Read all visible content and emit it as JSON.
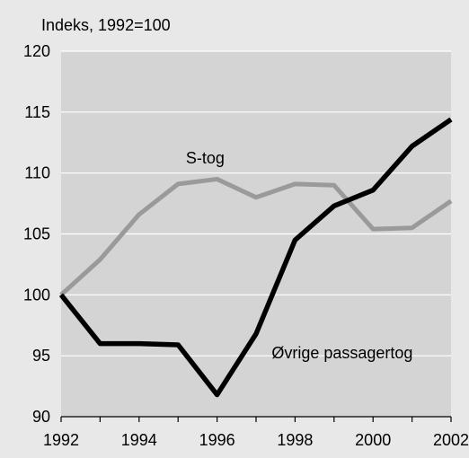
{
  "chart_data": {
    "type": "line",
    "ylabel": "Indeks, 1992=100",
    "xlabel": "",
    "x": [
      1992,
      1993,
      1994,
      1995,
      1996,
      1997,
      1998,
      1999,
      2000,
      2001,
      2002
    ],
    "x_ticks": [
      "1992",
      "1994",
      "1996",
      "1998",
      "2000",
      "2002"
    ],
    "x_tick_values": [
      1992,
      1994,
      1996,
      1998,
      2000,
      2002
    ],
    "y_ticks": [
      "90",
      "95",
      "100",
      "105",
      "110",
      "115",
      "120"
    ],
    "y_tick_values": [
      90,
      95,
      100,
      105,
      110,
      115,
      120
    ],
    "xlim": [
      1992,
      2002
    ],
    "ylim": [
      90,
      120
    ],
    "grid": "horizontal",
    "series": [
      {
        "name": "S-tog",
        "color": "#9a9a9a",
        "values": [
          100,
          102.9,
          106.6,
          109.1,
          109.5,
          108.0,
          109.1,
          109.0,
          105.4,
          105.5,
          107.7
        ]
      },
      {
        "name": "Øvrige passagertog",
        "color": "#000000",
        "values": [
          100,
          96.0,
          96.0,
          95.9,
          91.8,
          96.8,
          104.5,
          107.3,
          108.6,
          112.2,
          114.4
        ]
      }
    ]
  },
  "colors": {
    "plot_background": "#d4d4d4",
    "page_background": "#e8e8e8",
    "grid": "#ffffff"
  }
}
